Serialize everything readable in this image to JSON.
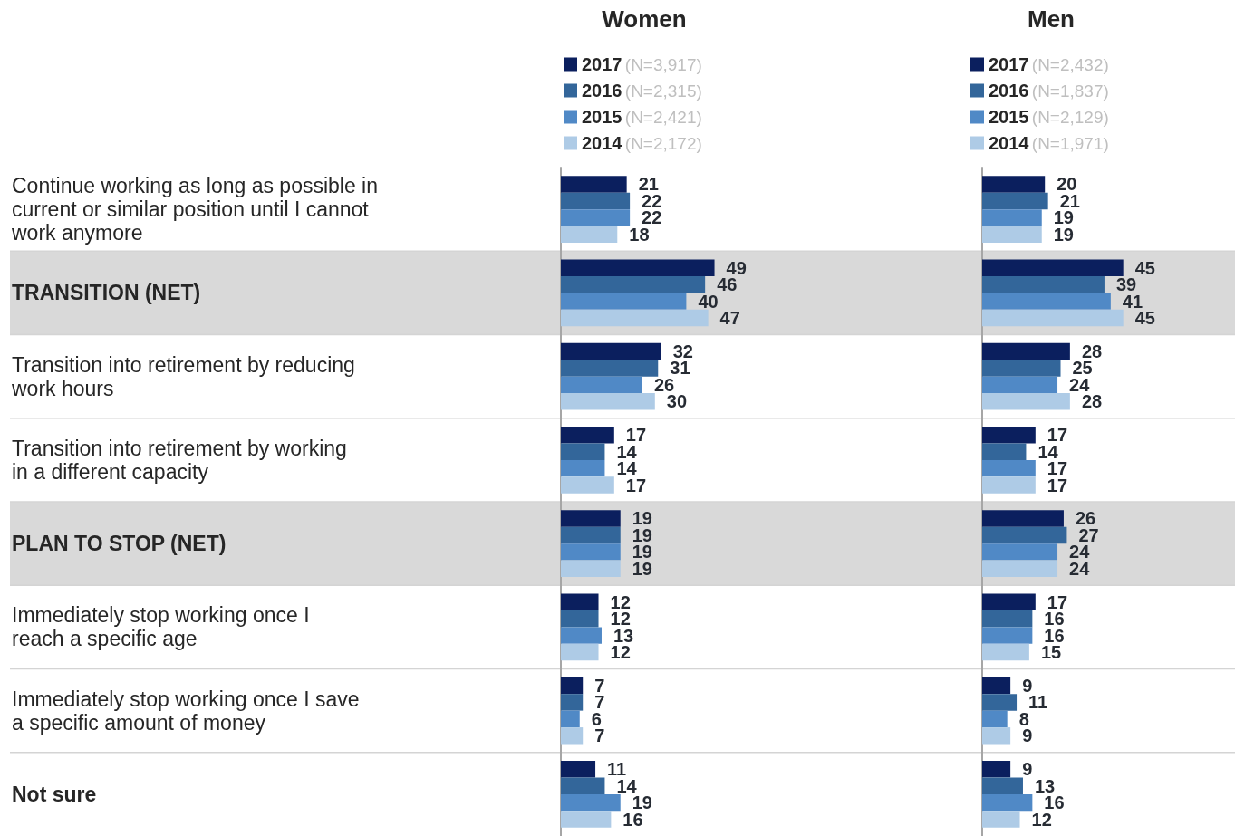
{
  "chart_data": [
    {
      "type": "bar",
      "orientation": "horizontal",
      "title": "Women",
      "categories": [
        "Continue working as long as possible in current or similar position until I cannot work anymore",
        "TRANSITION (NET)",
        "Transition into retirement by reducing work hours",
        "Transition into retirement by working in a different capacity",
        "PLAN TO STOP (NET)",
        "Immediately stop working once I reach a specific age",
        "Immediately stop working once I save a specific amount of money",
        "Not sure"
      ],
      "series": [
        {
          "name": "2017 (N=3,917)",
          "color": "#0b1f5e",
          "values": [
            21,
            49,
            32,
            17,
            19,
            12,
            7,
            11
          ]
        },
        {
          "name": "2016 (N=2,315)",
          "color": "#33669a",
          "values": [
            22,
            46,
            31,
            14,
            19,
            12,
            7,
            14
          ]
        },
        {
          "name": "2015 (N=2,421)",
          "color": "#5089c6",
          "values": [
            22,
            40,
            26,
            14,
            19,
            13,
            6,
            19
          ]
        },
        {
          "name": "2014 (N=2,172)",
          "color": "#aecbe6",
          "values": [
            18,
            47,
            30,
            17,
            19,
            12,
            7,
            16
          ]
        }
      ],
      "data_labels": true,
      "legend": "top left",
      "grid": "y",
      "tick_labels": "y",
      "bands": [
        {
          "axis": "y",
          "from": "TRANSITION (NET)",
          "to": "TRANSITION (NET)",
          "color": "#d9d9d9"
        },
        {
          "axis": "y",
          "from": "PLAN TO STOP (NET)",
          "to": "PLAN TO STOP (NET)",
          "color": "#d9d9d9"
        }
      ]
    },
    {
      "type": "bar",
      "orientation": "horizontal",
      "title": "Men",
      "categories": [
        "Continue working as long as possible in current or similar position until I cannot work anymore",
        "TRANSITION (NET)",
        "Transition into retirement by reducing work hours",
        "Transition into retirement by working in a different capacity",
        "PLAN TO STOP (NET)",
        "Immediately stop working once I reach a specific age",
        "Immediately stop working once I save a specific amount of money",
        "Not sure"
      ],
      "series": [
        {
          "name": "2017 (N=2,432)",
          "color": "#0b1f5e",
          "values": [
            20,
            45,
            28,
            17,
            26,
            17,
            9,
            9
          ]
        },
        {
          "name": "2016 (N=1,837)",
          "color": "#33669a",
          "values": [
            21,
            39,
            25,
            14,
            27,
            16,
            11,
            13
          ]
        },
        {
          "name": "2015 (N=2,129)",
          "color": "#5089c6",
          "values": [
            19,
            41,
            24,
            17,
            24,
            16,
            8,
            16
          ]
        },
        {
          "name": "2014 (N=1,971)",
          "color": "#aecbe6",
          "values": [
            19,
            45,
            28,
            17,
            24,
            15,
            9,
            12
          ]
        }
      ],
      "data_labels": true,
      "legend": "top left",
      "grid": "y",
      "tick_labels": false,
      "bands": [
        {
          "axis": "y",
          "from": "TRANSITION (NET)",
          "to": "TRANSITION (NET)",
          "color": "#d9d9d9"
        },
        {
          "axis": "y",
          "from": "PLAN TO STOP (NET)",
          "to": "PLAN TO STOP (NET)",
          "color": "#d9d9d9"
        }
      ]
    }
  ]
}
